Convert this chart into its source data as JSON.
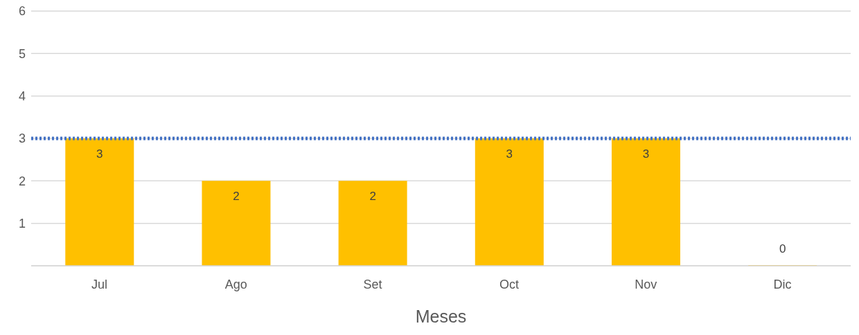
{
  "chart_data": {
    "type": "bar",
    "xlabel": "Meses",
    "categories": [
      "Jul",
      "Ago",
      "Set",
      "Oct",
      "Nov",
      "Dic"
    ],
    "values": [
      3,
      2,
      2,
      3,
      3,
      0
    ],
    "color": "#ffc000",
    "ylim": [
      0,
      6
    ],
    "yticks": [
      {
        "value": 0,
        "label": null
      },
      1,
      2,
      3,
      4,
      5,
      6
    ],
    "grid": "y",
    "data_labels": true,
    "ref_lines": [
      {
        "axis": "y",
        "value": 3,
        "color": "#4472c4",
        "line_style": "dotted"
      }
    ]
  }
}
